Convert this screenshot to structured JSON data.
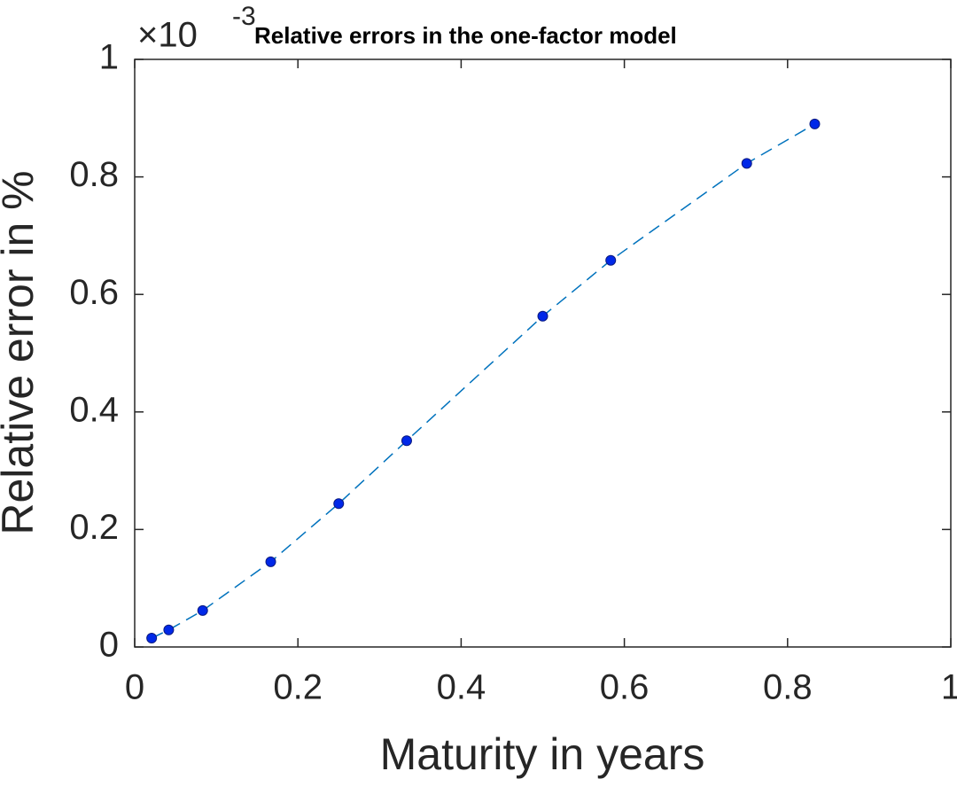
{
  "chart_data": {
    "type": "line",
    "title": "Relative errors in the one-factor model",
    "y_multiplier": {
      "base": "×10",
      "exponent": "-3"
    },
    "xlabel": "Maturity in years",
    "ylabel": "Relative error in %",
    "x": [
      0.0208,
      0.0417,
      0.0833,
      0.1667,
      0.25,
      0.3333,
      0.5,
      0.5833,
      0.75,
      0.8333
    ],
    "series": [
      {
        "color": "#0072bd",
        "marker_color": "#0028e8",
        "values": [
          0.015,
          0.029,
          0.062,
          0.145,
          0.244,
          0.351,
          0.563,
          0.658,
          0.823,
          0.89
        ]
      }
    ],
    "xlim": [
      0,
      1
    ],
    "xticks": [
      0,
      0.2,
      0.4,
      0.6,
      0.8,
      1
    ],
    "ylim": [
      0,
      1
    ],
    "yticks": [
      0,
      0.2,
      0.4,
      0.6,
      0.8,
      1
    ],
    "line_style": "dashed",
    "box": true
  }
}
